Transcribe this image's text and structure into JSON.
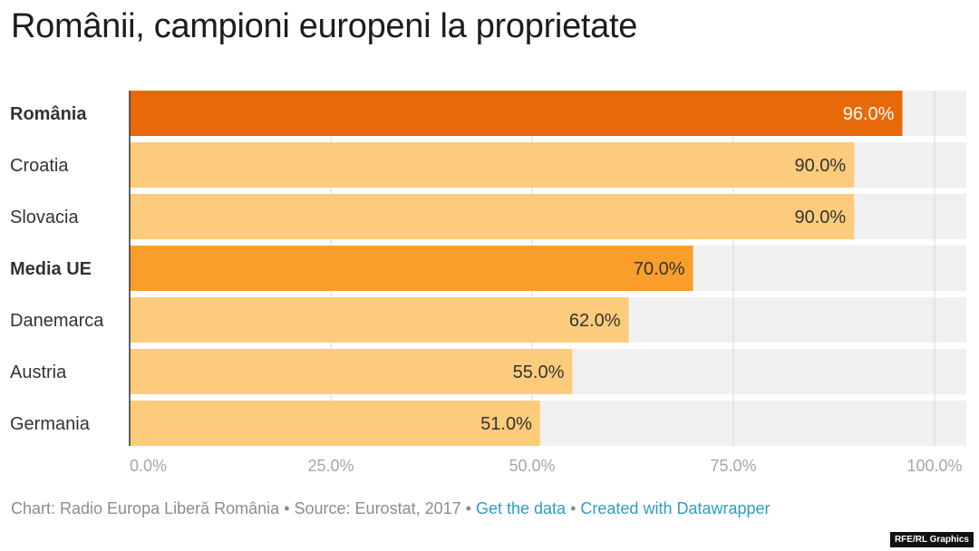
{
  "title": "Românii, campioni europeni la proprietate",
  "chart_data": {
    "type": "bar",
    "orientation": "horizontal",
    "categories": [
      "România",
      "Croatia",
      "Slovacia",
      "Media UE",
      "Danemarca",
      "Austria",
      "Germania"
    ],
    "values": [
      96.0,
      90.0,
      90.0,
      70.0,
      62.0,
      55.0,
      51.0
    ],
    "value_labels": [
      "96.0%",
      "90.0%",
      "90.0%",
      "70.0%",
      "62.0%",
      "55.0%",
      "51.0%"
    ],
    "bold": [
      true,
      false,
      false,
      true,
      false,
      false,
      false
    ],
    "bar_colors": [
      "#e8690a",
      "#fdcb7c",
      "#fdcb7c",
      "#f99d2b",
      "#fdcb7c",
      "#fdcb7c",
      "#fdcb7c"
    ],
    "label_colors": [
      "#ffffff",
      "#333333",
      "#333333",
      "#333333",
      "#333333",
      "#333333",
      "#333333"
    ],
    "background_color": "#f0f0f0",
    "xlim": [
      0,
      100
    ],
    "x_ticks": [
      0,
      25,
      50,
      75,
      100
    ],
    "x_tick_labels": [
      "0.0%",
      "25.0%",
      "50.0%",
      "75.0%",
      "100.0%"
    ],
    "grid": true
  },
  "footer": {
    "chart_credit": "Chart: Radio Europa Liberă România",
    "separator": "•",
    "source": "Source: Eurostat, 2017",
    "get_data": "Get the data",
    "created_with": "Created with Datawrapper"
  },
  "badge": "RFE/RL Graphics"
}
